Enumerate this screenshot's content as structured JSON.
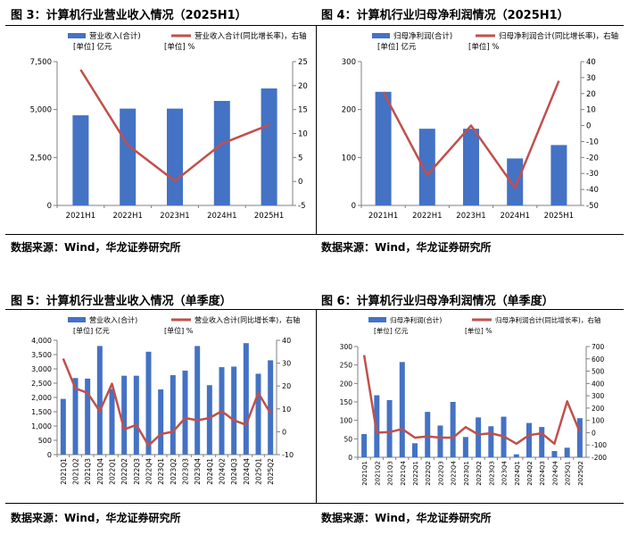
{
  "figures": [
    {
      "title": "图 3：计算机行业营业收入情况（2025H1）",
      "source": "数据来源：Wind，华龙证券研究所"
    },
    {
      "title": "图 4：计算机行业归母净利润情况（2025H1）",
      "source": "数据来源：Wind，华龙证券研究所"
    },
    {
      "title": "图 5：计算机行业营业收入情况（单季度）",
      "source": "数据来源：Wind，华龙证券研究所"
    },
    {
      "title": "图 6：计算机行业归母净利润情况（单季度）",
      "source": "数据来源：Wind，华龙证券研究所"
    }
  ],
  "colors": {
    "bar": "#4472C4",
    "line": "#C0504D",
    "axis": "#7f7f7f"
  },
  "chart_data": [
    {
      "type": "bar",
      "title": "图 3：计算机行业营业收入情况（2025H1）",
      "categories": [
        "2021H1",
        "2022H1",
        "2023H1",
        "2024H1",
        "2025H1"
      ],
      "series": [
        {
          "name": "营业收入(合计)",
          "unit": "[单位] 亿元",
          "kind": "bar",
          "axis": "left",
          "values": [
            4700,
            5050,
            5050,
            5450,
            6100
          ]
        },
        {
          "name": "营业收入合计(同比增长率)，右轴",
          "unit": "[单位] %",
          "kind": "line",
          "axis": "right",
          "values": [
            23.3,
            7.6,
            0.1,
            7.9,
            11.8
          ]
        }
      ],
      "ylim_left": [
        0,
        7500
      ],
      "yticks_left": [
        "0",
        "2,500",
        "5,000",
        "7,500"
      ],
      "ylim_right": [
        -5,
        25
      ],
      "yticks_right": [
        "-5",
        "0",
        "5",
        "10",
        "15",
        "20",
        "25"
      ]
    },
    {
      "type": "bar",
      "title": "图 4：计算机行业归母净利润情况（2025H1）",
      "categories": [
        "2021H1",
        "2022H1",
        "2023H1",
        "2024H1",
        "2025H1"
      ],
      "series": [
        {
          "name": "归母净利润(合计)",
          "unit": "[单位] 亿元",
          "kind": "bar",
          "axis": "left",
          "values": [
            237,
            160,
            160,
            98,
            126
          ]
        },
        {
          "name": "归母净利润合计(同比增长率)，右轴",
          "unit": "[单位] %",
          "kind": "line",
          "axis": "right",
          "values": [
            21,
            -31,
            0,
            -39,
            28
          ]
        }
      ],
      "ylim_left": [
        0,
        300
      ],
      "yticks_left": [
        "0",
        "100",
        "200",
        "300"
      ],
      "ylim_right": [
        -50,
        40
      ],
      "yticks_right": [
        "-50",
        "-40",
        "-30",
        "-20",
        "-10",
        "0",
        "10",
        "20",
        "30",
        "40"
      ]
    },
    {
      "type": "bar",
      "title": "图 5：计算机行业营业收入情况（单季度）",
      "categories": [
        "2021Q1",
        "2021Q2",
        "2021Q3",
        "2021Q4",
        "2022Q1",
        "2022Q2",
        "2022Q3",
        "2022Q4",
        "2023Q1",
        "2023Q2",
        "2023Q3",
        "2023Q4",
        "2024Q1",
        "2024Q2",
        "2024Q3",
        "2024Q4",
        "2025Q1",
        "2025Q2"
      ],
      "series": [
        {
          "name": "营业收入(合计)",
          "unit": "[单位] 亿元",
          "kind": "bar",
          "axis": "left",
          "values": [
            1950,
            2680,
            2660,
            3800,
            2300,
            2760,
            2760,
            3600,
            2280,
            2780,
            2940,
            3800,
            2430,
            3060,
            3080,
            3900,
            2830,
            3300
          ]
        },
        {
          "name": "营业收入合计(同比增长率)，右轴",
          "unit": "[单位] %",
          "kind": "line",
          "axis": "right",
          "values": [
            32,
            19,
            17,
            9,
            21,
            1,
            3,
            -6,
            -1,
            0,
            6,
            5,
            6,
            9,
            5,
            3,
            17,
            8
          ]
        }
      ],
      "ylim_left": [
        0,
        4000
      ],
      "yticks_left": [
        "0",
        "500",
        "1,000",
        "1,500",
        "2,000",
        "2,500",
        "3,000",
        "3,500",
        "4,000"
      ],
      "ylim_right": [
        -10,
        40
      ],
      "yticks_right": [
        "-10",
        "0",
        "10",
        "20",
        "30",
        "40"
      ]
    },
    {
      "type": "bar",
      "title": "图 6：计算机行业归母净利润情况（单季度）",
      "categories": [
        "2021Q1",
        "2021Q2",
        "2021Q3",
        "2021Q4",
        "2022Q1",
        "2022Q2",
        "2022Q3",
        "2022Q4",
        "2023Q1",
        "2023Q2",
        "2023Q3",
        "2023Q4",
        "2024Q1",
        "2024Q2",
        "2024Q3",
        "2024Q4",
        "2025Q1",
        "2025Q2"
      ],
      "series": [
        {
          "name": "归母净利润(合计)",
          "unit": "[单位] 亿元",
          "kind": "bar",
          "axis": "left",
          "values": [
            63,
            168,
            155,
            258,
            38,
            123,
            86,
            150,
            55,
            108,
            84,
            110,
            8,
            93,
            82,
            17,
            26,
            106
          ]
        },
        {
          "name": "归母净利润合计(同比增长率)，右轴",
          "unit": "[单位] %",
          "kind": "line",
          "axis": "right",
          "values": [
            630,
            0,
            5,
            30,
            -40,
            -30,
            -40,
            -40,
            45,
            -15,
            -5,
            -30,
            -90,
            -20,
            -5,
            -90,
            255,
            5
          ]
        }
      ],
      "ylim_left": [
        0,
        300
      ],
      "yticks_left": [
        "0",
        "50",
        "100",
        "150",
        "200",
        "250",
        "300"
      ],
      "ylim_right": [
        -200,
        700
      ],
      "yticks_right": [
        "-200",
        "-100",
        "0",
        "100",
        "200",
        "300",
        "400",
        "500",
        "600",
        "700"
      ]
    }
  ]
}
